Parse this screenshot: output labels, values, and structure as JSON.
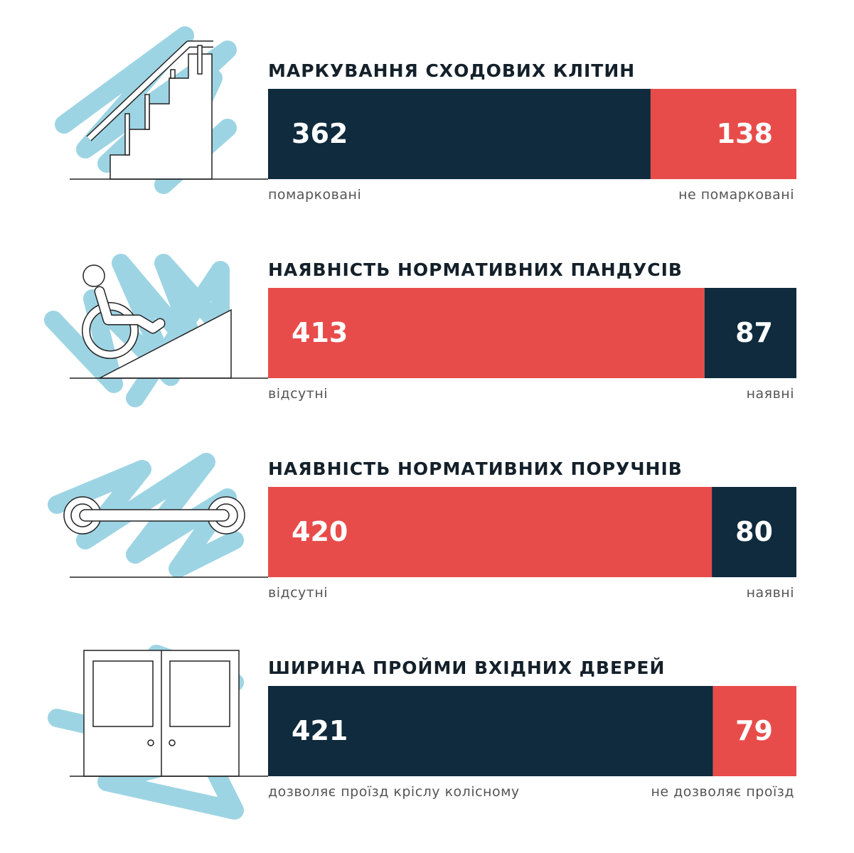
{
  "chart_data": [
    {
      "type": "bar",
      "title": "МАРКУВАННЯ СХОДОВИХ КЛІТИН",
      "series": [
        {
          "name": "помарковані",
          "color": "#0f2b3d",
          "values": [
            362
          ]
        },
        {
          "name": "не помарковані",
          "color": "#e84c4a",
          "values": [
            138
          ]
        }
      ]
    },
    {
      "type": "bar",
      "title": "НАЯВНІСТЬ НОРМАТИВНИХ ПАНДУСІВ",
      "series": [
        {
          "name": "відсутні",
          "color": "#e84c4a",
          "values": [
            413
          ]
        },
        {
          "name": "наявні",
          "color": "#0f2b3d",
          "values": [
            87
          ]
        }
      ]
    },
    {
      "type": "bar",
      "title": "НАЯВНІСТЬ НОРМАТИВНИХ ПОРУЧНІВ",
      "series": [
        {
          "name": "відсутні",
          "color": "#e84c4a",
          "values": [
            420
          ]
        },
        {
          "name": "наявні",
          "color": "#0f2b3d",
          "values": [
            80
          ]
        }
      ]
    },
    {
      "type": "bar",
      "title": "ШИРИНА ПРОЙМИ ВХІДНИХ ДВЕРЕЙ",
      "series": [
        {
          "name": "дозволяє проїзд кріслу колісному",
          "color": "#0f2b3d",
          "values": [
            421
          ]
        },
        {
          "name": "не дозволяє проїзд",
          "color": "#e84c4a",
          "values": [
            79
          ]
        }
      ]
    }
  ]
}
